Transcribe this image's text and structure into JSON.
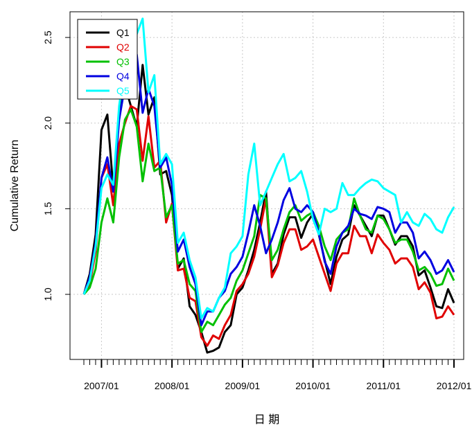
{
  "chart_data": {
    "type": "line",
    "xlabel": "日 期",
    "ylabel": "Cumulative Return",
    "ylim": [
      0.62,
      2.65
    ],
    "yticks": [
      1.0,
      1.5,
      2.0,
      2.5
    ],
    "ytick_labels": [
      "1.0",
      "1.5",
      "2.0",
      "2.5"
    ],
    "x_start": "2006/10",
    "x_count": 64,
    "xtick_labels": [
      {
        "index": 3,
        "label": "2007/01"
      },
      {
        "index": 15,
        "label": "2008/01"
      },
      {
        "index": 27,
        "label": "2009/01"
      },
      {
        "index": 39,
        "label": "2010/01"
      },
      {
        "index": 51,
        "label": "2011/01"
      },
      {
        "index": 63,
        "label": "2012/01"
      }
    ],
    "grid": true,
    "legend_position": "top-left",
    "series": [
      {
        "name": "Q1",
        "color": "#000000",
        "values": [
          1.0,
          1.12,
          1.35,
          1.96,
          2.05,
          1.62,
          2.05,
          2.22,
          2.1,
          1.98,
          2.34,
          2.05,
          2.15,
          1.7,
          1.72,
          1.58,
          1.15,
          1.21,
          0.93,
          0.88,
          0.78,
          0.66,
          0.67,
          0.69,
          0.78,
          0.82,
          1.0,
          1.04,
          1.14,
          1.26,
          1.42,
          1.6,
          1.12,
          1.18,
          1.35,
          1.45,
          1.45,
          1.33,
          1.42,
          1.47,
          1.35,
          1.2,
          1.06,
          1.22,
          1.32,
          1.35,
          1.52,
          1.46,
          1.4,
          1.34,
          1.46,
          1.46,
          1.38,
          1.29,
          1.34,
          1.34,
          1.28,
          1.11,
          1.14,
          1.04,
          0.93,
          0.92,
          1.03,
          0.95
        ]
      },
      {
        "name": "Q2",
        "color": "#e00000",
        "values": [
          1.0,
          1.06,
          1.25,
          1.68,
          1.76,
          1.52,
          1.88,
          2.0,
          2.1,
          2.08,
          1.78,
          2.04,
          1.74,
          1.78,
          1.42,
          1.53,
          1.14,
          1.15,
          0.98,
          0.96,
          0.75,
          0.7,
          0.76,
          0.74,
          0.82,
          0.88,
          1.02,
          1.06,
          1.12,
          1.22,
          1.38,
          1.56,
          1.1,
          1.17,
          1.3,
          1.38,
          1.38,
          1.26,
          1.28,
          1.32,
          1.22,
          1.12,
          1.02,
          1.18,
          1.24,
          1.24,
          1.4,
          1.34,
          1.34,
          1.24,
          1.35,
          1.3,
          1.26,
          1.18,
          1.21,
          1.21,
          1.16,
          1.03,
          1.07,
          1.01,
          0.86,
          0.87,
          0.93,
          0.88
        ]
      },
      {
        "name": "Q3",
        "color": "#00c000",
        "values": [
          1.0,
          1.04,
          1.15,
          1.42,
          1.56,
          1.42,
          1.8,
          2.02,
          2.08,
          1.98,
          1.66,
          1.88,
          1.72,
          1.74,
          1.45,
          1.52,
          1.18,
          1.2,
          1.06,
          1.02,
          0.78,
          0.84,
          0.82,
          0.88,
          0.94,
          0.98,
          1.08,
          1.14,
          1.24,
          1.34,
          1.58,
          1.56,
          1.2,
          1.26,
          1.38,
          1.48,
          1.52,
          1.43,
          1.46,
          1.48,
          1.4,
          1.28,
          1.2,
          1.32,
          1.36,
          1.38,
          1.56,
          1.46,
          1.38,
          1.36,
          1.46,
          1.44,
          1.38,
          1.3,
          1.32,
          1.32,
          1.25,
          1.14,
          1.16,
          1.12,
          1.05,
          1.06,
          1.15,
          1.08
        ]
      },
      {
        "name": "Q4",
        "color": "#0000e0",
        "values": [
          1.0,
          1.1,
          1.3,
          1.68,
          1.8,
          1.6,
          2.02,
          2.22,
          2.32,
          2.4,
          2.06,
          2.2,
          2.1,
          1.74,
          1.8,
          1.64,
          1.25,
          1.32,
          1.16,
          1.06,
          0.82,
          0.9,
          0.9,
          0.98,
          1.02,
          1.12,
          1.16,
          1.22,
          1.36,
          1.52,
          1.4,
          1.24,
          1.32,
          1.42,
          1.55,
          1.62,
          1.5,
          1.48,
          1.52,
          1.48,
          1.36,
          1.19,
          1.12,
          1.28,
          1.36,
          1.4,
          1.5,
          1.47,
          1.46,
          1.44,
          1.51,
          1.5,
          1.48,
          1.36,
          1.42,
          1.42,
          1.36,
          1.21,
          1.25,
          1.2,
          1.12,
          1.14,
          1.2,
          1.13
        ]
      },
      {
        "name": "Q5",
        "color": "#00ffff",
        "values": [
          1.0,
          1.08,
          1.28,
          1.62,
          1.7,
          1.64,
          2.1,
          2.34,
          2.5,
          2.52,
          2.61,
          2.18,
          2.28,
          1.76,
          1.82,
          1.76,
          1.3,
          1.36,
          1.2,
          1.1,
          0.86,
          0.92,
          0.9,
          0.98,
          1.04,
          1.24,
          1.28,
          1.34,
          1.7,
          1.88,
          1.52,
          1.6,
          1.68,
          1.76,
          1.82,
          1.66,
          1.68,
          1.72,
          1.6,
          1.44,
          1.35,
          1.5,
          1.48,
          1.5,
          1.65,
          1.58,
          1.58,
          1.62,
          1.65,
          1.67,
          1.66,
          1.62,
          1.6,
          1.58,
          1.42,
          1.48,
          1.42,
          1.4,
          1.47,
          1.44,
          1.38,
          1.36,
          1.45,
          1.51
        ]
      }
    ]
  }
}
